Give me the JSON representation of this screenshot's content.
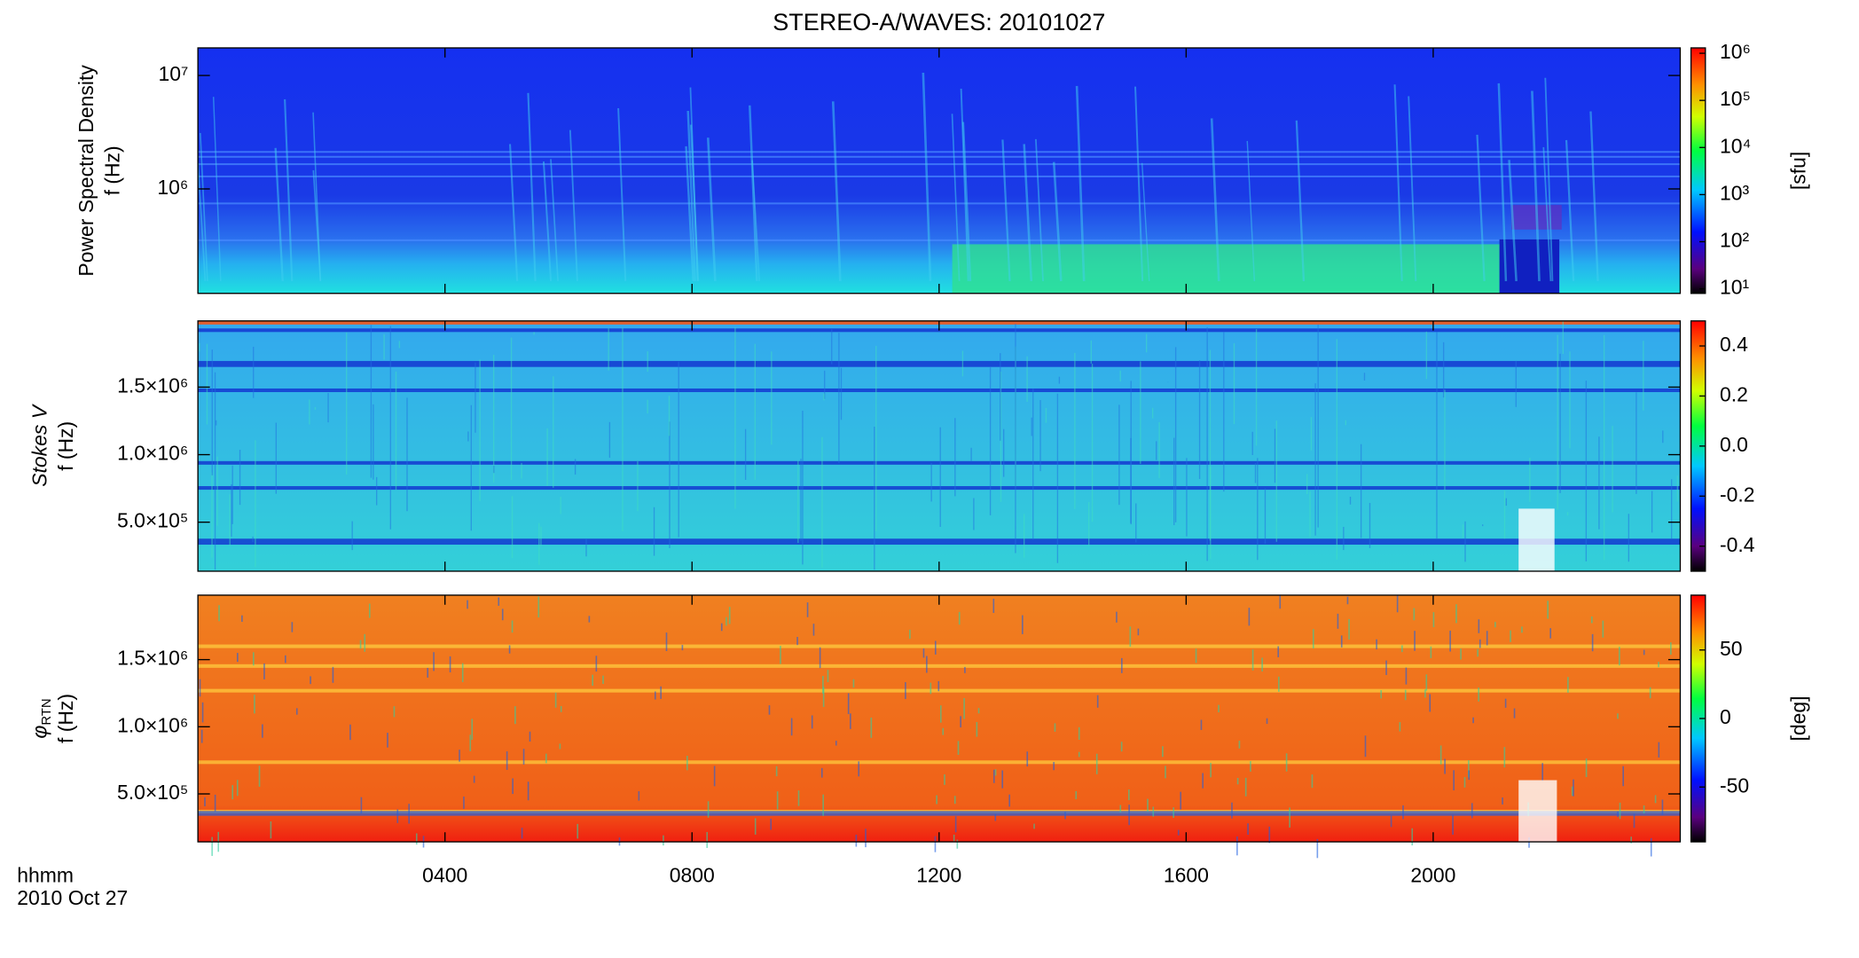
{
  "chart_data": [
    {
      "type": "spectrogram",
      "title": "STEREO-A/WAVES: 20101027",
      "ylabel": "Power Spectral Density",
      "ylabel2": "f (Hz)",
      "ylog": true,
      "ylim": [
        120000,
        17500000
      ],
      "yticks": [
        {
          "value": 1000000,
          "label": "10⁶"
        },
        {
          "value": 10000000,
          "label": "10⁷"
        }
      ],
      "colorbar": {
        "log": true,
        "lim": [
          8,
          1300000
        ],
        "label": "[sfu]",
        "ticks": [
          {
            "value": 10,
            "label": "10¹"
          },
          {
            "value": 100,
            "label": "10²"
          },
          {
            "value": 1000,
            "label": "10³"
          },
          {
            "value": 10000,
            "label": "10⁴"
          },
          {
            "value": 100000,
            "label": "10⁵"
          },
          {
            "value": 1000000,
            "label": "10⁶"
          }
        ]
      }
    },
    {
      "type": "spectrogram",
      "ylabel": "Stokes V",
      "ylabel2": "f (Hz)",
      "ylog": false,
      "ylim": [
        137000,
        1990000
      ],
      "yticks": [
        {
          "value": 500000,
          "label": "5.0×10⁵"
        },
        {
          "value": 1000000,
          "label": "1.0×10⁶"
        },
        {
          "value": 1500000,
          "label": "1.5×10⁶"
        }
      ],
      "colorbar": {
        "log": false,
        "lim": [
          -0.5,
          0.5
        ],
        "ticks": [
          -0.4,
          -0.2,
          {
            "value": 0,
            "label": "0.0"
          },
          0.2,
          0.4
        ]
      }
    },
    {
      "type": "spectrogram",
      "ylabel": "φ",
      "ylabel_sub": "RTN",
      "ylabel2": "f (Hz)",
      "ylog": false,
      "ylim": [
        143000,
        1980000
      ],
      "yticks": [
        {
          "value": 500000,
          "label": "5.0×10⁵"
        },
        {
          "value": 1000000,
          "label": "1.0×10⁶"
        },
        {
          "value": 1500000,
          "label": "1.5×10⁶"
        }
      ],
      "xlabel": "hhmm",
      "xlabel2": "2010 Oct 27",
      "xlim": [
        0,
        24
      ],
      "xticks": [
        {
          "value": 4,
          "label": "0400"
        },
        {
          "value": 8,
          "label": "0800"
        },
        {
          "value": 12,
          "label": "1200"
        },
        {
          "value": 16,
          "label": "1600"
        },
        {
          "value": 20,
          "label": "2000"
        }
      ],
      "colorbar": {
        "log": false,
        "lim": [
          -90,
          90
        ],
        "label": "[deg]",
        "ticks": [
          -50,
          0,
          50
        ]
      }
    }
  ]
}
